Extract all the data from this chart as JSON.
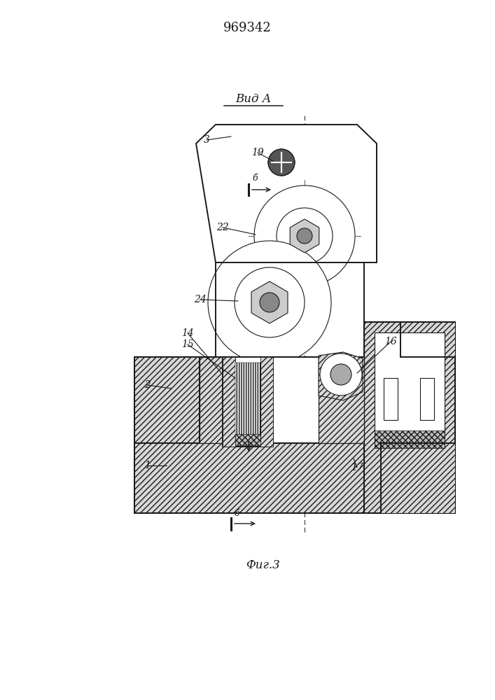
{
  "title": "969342",
  "view_label": "Вид А",
  "fig_label": "Фиг.3",
  "bg_color": "#ffffff",
  "line_color": "#1a1a1a",
  "lw_main": 1.4,
  "lw_thin": 0.8,
  "lw_label": 0.8
}
